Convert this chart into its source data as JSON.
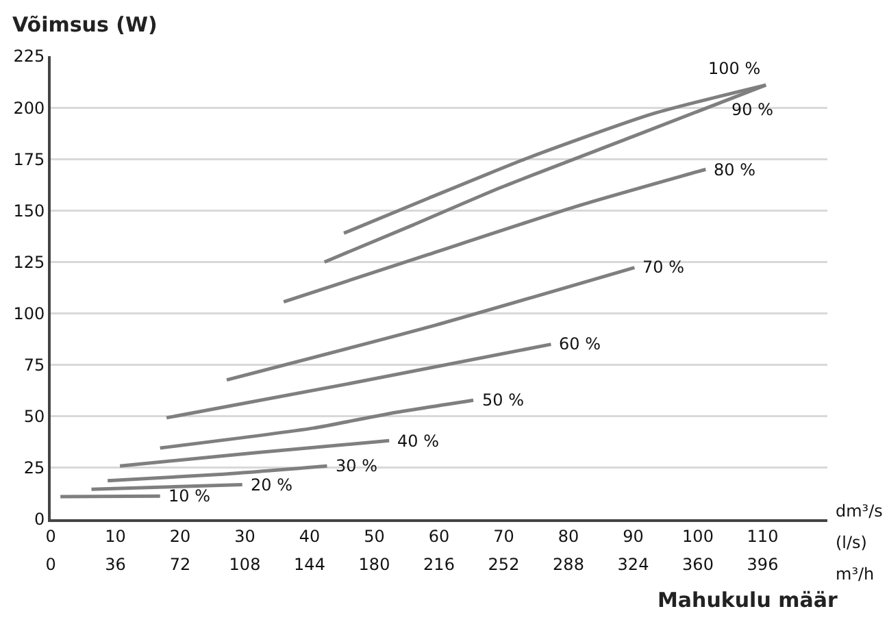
{
  "chart_data": {
    "type": "line",
    "ylabel": "Võimsus (W)",
    "xlabel": "Mahukulu määr",
    "xlim": [
      0,
      120
    ],
    "xticks": [
      0,
      10,
      20,
      30,
      40,
      50,
      60,
      70,
      80,
      90,
      100,
      110
    ],
    "x2lim": [
      0,
      432
    ],
    "x2ticks": [
      0,
      36,
      72,
      108,
      144,
      180,
      216,
      252,
      288,
      324,
      360,
      396
    ],
    "ylim": [
      0,
      225
    ],
    "yticks": [
      0,
      25,
      50,
      75,
      100,
      125,
      150,
      175,
      200,
      225
    ],
    "grid": "y",
    "legend": false,
    "marker": "none",
    "line_style": "solid",
    "annotations": [
      "dm³/s",
      "(l/s)",
      "m³/h"
    ],
    "series": [
      {
        "name": "100 %",
        "color": "#7f7f7f",
        "x": [
          45.3,
          58.4,
          74.1,
          93,
          110.5
        ],
        "values": [
          139,
          156,
          176,
          197,
          211
        ]
      },
      {
        "name": "90 %",
        "color": "#7f7f7f",
        "x": [
          42.3,
          56,
          69.4,
          90,
          110.5
        ],
        "values": [
          125,
          143,
          161,
          186,
          211
        ]
      },
      {
        "name": "80 %",
        "color": "#7f7f7f",
        "x": [
          36,
          58.4,
          81.2,
          101.2
        ],
        "values": [
          105.6,
          128.7,
          152,
          170
        ]
      },
      {
        "name": "70 %",
        "color": "#7f7f7f",
        "x": [
          27.2,
          58.4,
          90.2
        ],
        "values": [
          67.7,
          93.4,
          122.3
        ]
      },
      {
        "name": "60 %",
        "color": "#7f7f7f",
        "x": [
          17.9,
          46.8,
          77.3
        ],
        "values": [
          49.3,
          66.3,
          85
        ]
      },
      {
        "name": "50 %",
        "color": "#7f7f7f",
        "x": [
          16.9,
          40.6,
          52.1,
          65.3
        ],
        "values": [
          34.6,
          44.3,
          51.2,
          57.8
        ]
      },
      {
        "name": "40 %",
        "color": "#7f7f7f",
        "x": [
          10.7,
          31.8,
          52.3
        ],
        "values": [
          25.9,
          32.4,
          38.2
        ]
      },
      {
        "name": "30 %",
        "color": "#7f7f7f",
        "x": [
          8.8,
          25.7,
          42.7
        ],
        "values": [
          18.7,
          21.7,
          25.9
        ]
      },
      {
        "name": "20 %",
        "color": "#7f7f7f",
        "x": [
          6.3,
          29.6
        ],
        "values": [
          14.6,
          16.8
        ]
      },
      {
        "name": "10 %",
        "color": "#7f7f7f",
        "x": [
          1.5,
          16.9
        ],
        "values": [
          11,
          11.2
        ]
      }
    ]
  }
}
